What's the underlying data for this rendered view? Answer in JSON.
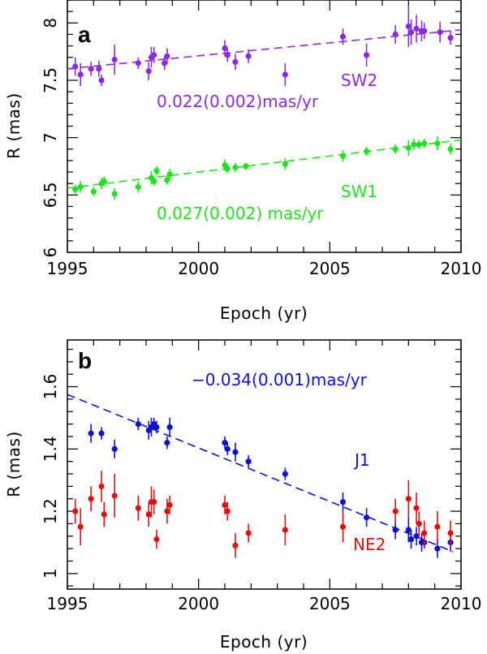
{
  "chart_data": [
    {
      "type": "scatter",
      "panel_label": "a",
      "xlabel": "Epoch (yr)",
      "ylabel": "R (mas)",
      "xlim": [
        1995,
        2010
      ],
      "ylim": [
        6,
        8.2
      ],
      "xticks": [
        1995,
        2000,
        2005,
        2010
      ],
      "yticks": [
        6,
        6.5,
        7,
        7.5,
        8
      ],
      "series": [
        {
          "name": "SW2",
          "color": "#8a2be2",
          "rate_label": "0.022(0.002)mas/yr",
          "fit": {
            "x": [
              1995,
              2010
            ],
            "y": [
              7.6,
              7.94
            ]
          },
          "x": [
            1995.3,
            1995.5,
            1995.9,
            1996.2,
            1996.3,
            1996.8,
            1997.7,
            1998.1,
            1998.2,
            1998.3,
            1998.7,
            1998.8,
            2001.0,
            2001.1,
            2001.4,
            2001.9,
            2003.3,
            2005.5,
            2006.4,
            2007.5,
            2008.0,
            2008.1,
            2008.3,
            2008.5,
            2008.6,
            2009.2,
            2009.6
          ],
          "y": [
            7.62,
            7.55,
            7.6,
            7.6,
            7.5,
            7.68,
            7.65,
            7.58,
            7.7,
            7.72,
            7.65,
            7.71,
            7.78,
            7.72,
            7.66,
            7.71,
            7.55,
            7.88,
            7.72,
            7.9,
            7.97,
            7.92,
            7.95,
            7.93,
            7.93,
            7.92,
            7.87
          ],
          "err": [
            0.08,
            0.1,
            0.06,
            0.07,
            0.05,
            0.13,
            0.05,
            0.08,
            0.09,
            0.07,
            0.06,
            0.07,
            0.07,
            0.06,
            0.07,
            0.06,
            0.1,
            0.07,
            0.1,
            0.08,
            0.18,
            0.11,
            0.12,
            0.09,
            0.07,
            0.09,
            0.06
          ]
        },
        {
          "name": "SW1",
          "color": "#22e022",
          "rate_label": "0.027(0.002) mas/yr",
          "fit": {
            "x": [
              1995,
              2010
            ],
            "y": [
              6.56,
              6.98
            ]
          },
          "x": [
            1995.3,
            1995.5,
            1996.0,
            1996.3,
            1996.4,
            1996.8,
            1997.7,
            1998.2,
            1998.3,
            1998.4,
            1998.8,
            1998.9,
            2001.0,
            2001.1,
            2001.4,
            2001.8,
            2003.3,
            2005.5,
            2006.4,
            2007.5,
            2008.0,
            2008.2,
            2008.4,
            2008.6,
            2009.1,
            2009.6
          ],
          "y": [
            6.55,
            6.57,
            6.53,
            6.6,
            6.62,
            6.51,
            6.57,
            6.65,
            6.62,
            6.71,
            6.63,
            6.68,
            6.76,
            6.73,
            6.74,
            6.75,
            6.77,
            6.84,
            6.88,
            6.9,
            6.91,
            6.94,
            6.94,
            6.95,
            6.95,
            6.9
          ],
          "err": [
            0.04,
            0.05,
            0.04,
            0.05,
            0.04,
            0.05,
            0.05,
            0.06,
            0.04,
            0.04,
            0.04,
            0.05,
            0.05,
            0.04,
            0.04,
            0.03,
            0.05,
            0.05,
            0.04,
            0.04,
            0.07,
            0.05,
            0.04,
            0.04,
            0.06,
            0.05
          ]
        }
      ]
    },
    {
      "type": "scatter",
      "panel_label": "b",
      "xlabel": "Epoch (yr)",
      "ylabel": "R (mas)",
      "xlim": [
        1995,
        2010
      ],
      "ylim": [
        0.95,
        1.75
      ],
      "xticks": [
        1995,
        2000,
        2005,
        2010
      ],
      "yticks": [
        1,
        1.2,
        1.4,
        1.6
      ],
      "series": [
        {
          "name": "J1",
          "color": "#1010d0",
          "rate_label": "−0.034(0.001)mas/yr",
          "fit": {
            "x": [
              1995,
              2009.7
            ],
            "y": [
              1.575,
              1.07
            ]
          },
          "x": [
            1995.9,
            1996.3,
            1996.8,
            1997.7,
            1998.1,
            1998.2,
            1998.3,
            1998.4,
            1998.8,
            1998.9,
            2001.0,
            2001.1,
            2001.4,
            2001.9,
            2003.3,
            2005.5,
            2006.4,
            2007.5,
            2008.0,
            2008.1,
            2008.3,
            2008.5,
            2008.6,
            2009.1,
            2009.6
          ],
          "y": [
            1.45,
            1.45,
            1.4,
            1.48,
            1.46,
            1.47,
            1.48,
            1.47,
            1.42,
            1.47,
            1.42,
            1.4,
            1.39,
            1.36,
            1.32,
            1.23,
            1.18,
            1.14,
            1.14,
            1.11,
            1.12,
            1.1,
            1.1,
            1.08,
            1.1
          ],
          "err": [
            0.03,
            0.02,
            0.03,
            0.02,
            0.03,
            0.03,
            0.02,
            0.02,
            0.02,
            0.03,
            0.02,
            0.02,
            0.03,
            0.02,
            0.02,
            0.03,
            0.03,
            0.03,
            0.04,
            0.03,
            0.03,
            0.03,
            0.02,
            0.03,
            0.03
          ]
        },
        {
          "name": "NE2",
          "color": "#e01010",
          "rate_label": "",
          "fit": null,
          "x": [
            1995.3,
            1995.5,
            1995.9,
            1996.3,
            1996.4,
            1996.8,
            1997.7,
            1998.1,
            1998.2,
            1998.3,
            1998.4,
            1998.8,
            1998.9,
            2001.0,
            2001.1,
            2001.4,
            2001.9,
            2003.3,
            2005.5,
            2007.5,
            2008.0,
            2008.3,
            2008.4,
            2008.6,
            2009.1,
            2009.6
          ],
          "y": [
            1.2,
            1.15,
            1.24,
            1.28,
            1.19,
            1.25,
            1.21,
            1.19,
            1.23,
            1.23,
            1.11,
            1.2,
            1.22,
            1.22,
            1.2,
            1.09,
            1.13,
            1.14,
            1.15,
            1.2,
            1.24,
            1.21,
            1.16,
            1.13,
            1.15,
            1.13
          ],
          "err": [
            0.04,
            0.06,
            0.04,
            0.05,
            0.04,
            0.07,
            0.04,
            0.04,
            0.05,
            0.04,
            0.03,
            0.04,
            0.03,
            0.03,
            0.03,
            0.04,
            0.03,
            0.05,
            0.05,
            0.04,
            0.06,
            0.05,
            0.04,
            0.04,
            0.05,
            0.04
          ]
        }
      ]
    }
  ]
}
